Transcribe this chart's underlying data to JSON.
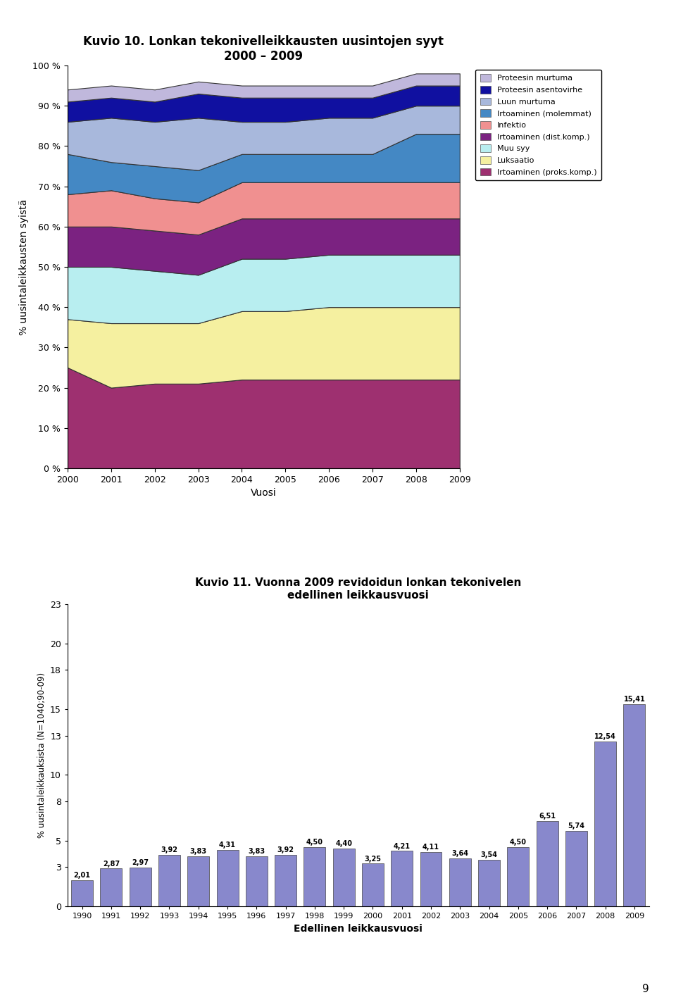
{
  "chart1": {
    "title": "Kuvio 10. Lonkan tekonivelleikkausten uusintojen syyt\n2000 – 2009",
    "xlabel": "Vuosi",
    "ylabel": "% uusintaleikkausten syistä",
    "years": [
      2000,
      2001,
      2002,
      2003,
      2004,
      2005,
      2006,
      2007,
      2008,
      2009
    ],
    "series_order": [
      "Irtoaminen (proks.komp.)",
      "Luksaatio",
      "Muu syy",
      "Irtoaminen (dist.komp.)",
      "Infektio",
      "Irtoaminen (molemmat)",
      "Luun murtuma",
      "Proteesin asentovirhe",
      "Proteesin murtuma"
    ],
    "series": {
      "Irtoaminen (proks.komp.)": [
        25,
        20,
        21,
        21,
        22,
        22,
        22,
        22,
        22,
        22
      ],
      "Luksaatio": [
        12,
        16,
        15,
        15,
        17,
        17,
        18,
        18,
        18,
        18
      ],
      "Muu syy": [
        13,
        14,
        13,
        12,
        13,
        13,
        13,
        13,
        13,
        13
      ],
      "Irtoaminen (dist.komp.)": [
        10,
        10,
        10,
        10,
        10,
        10,
        9,
        9,
        9,
        9
      ],
      "Infektio": [
        8,
        9,
        8,
        8,
        9,
        9,
        9,
        9,
        9,
        9
      ],
      "Irtoaminen (molemmat)": [
        10,
        7,
        8,
        8,
        7,
        7,
        7,
        7,
        12,
        12
      ],
      "Luun murtuma": [
        8,
        11,
        11,
        13,
        8,
        8,
        9,
        9,
        7,
        7
      ],
      "Proteesin asentovirhe": [
        5,
        5,
        5,
        6,
        6,
        6,
        5,
        5,
        5,
        5
      ],
      "Proteesin murtuma": [
        3,
        3,
        3,
        3,
        3,
        3,
        3,
        3,
        3,
        3
      ]
    },
    "colors": {
      "Irtoaminen (proks.komp.)": "#9E3070",
      "Luksaatio": "#F5F0A0",
      "Muu syy": "#B8EEF0",
      "Irtoaminen (dist.komp.)": "#7B2281",
      "Infektio": "#F09090",
      "Irtoaminen (molemmat)": "#4488C4",
      "Luun murtuma": "#A8B8DC",
      "Proteesin asentovirhe": "#1010A0",
      "Proteesin murtuma": "#C0B8DC"
    },
    "legend_order": [
      "Proteesin murtuma",
      "Proteesin asentovirhe",
      "Luun murtuma",
      "Irtoaminen (molemmat)",
      "Infektio",
      "Irtoaminen (dist.komp.)",
      "Muu syy",
      "Luksaatio",
      "Irtoaminen (proks.komp.)"
    ]
  },
  "chart2": {
    "title": "Kuvio 11. Vuonna 2009 revidoidun lonkan tekonivelen\nedellinen leikkausvuosi",
    "xlabel": "Edellinen leikkausvuosi",
    "ylabel": "% uusintaleikkauksista (N=1040;90-09)",
    "years": [
      1990,
      1991,
      1992,
      1993,
      1994,
      1995,
      1996,
      1997,
      1998,
      1999,
      2000,
      2001,
      2002,
      2003,
      2004,
      2005,
      2006,
      2007,
      2008,
      2009
    ],
    "values": [
      2.01,
      2.87,
      2.97,
      3.92,
      3.83,
      4.31,
      3.83,
      3.92,
      4.5,
      4.4,
      3.25,
      4.21,
      4.11,
      3.64,
      3.54,
      4.5,
      6.51,
      5.74,
      12.54,
      15.41
    ],
    "bar_color": "#8888CC",
    "ylim": [
      0,
      23
    ],
    "yticks": [
      0,
      3,
      5,
      8,
      10,
      13,
      15,
      18,
      20,
      23
    ]
  }
}
